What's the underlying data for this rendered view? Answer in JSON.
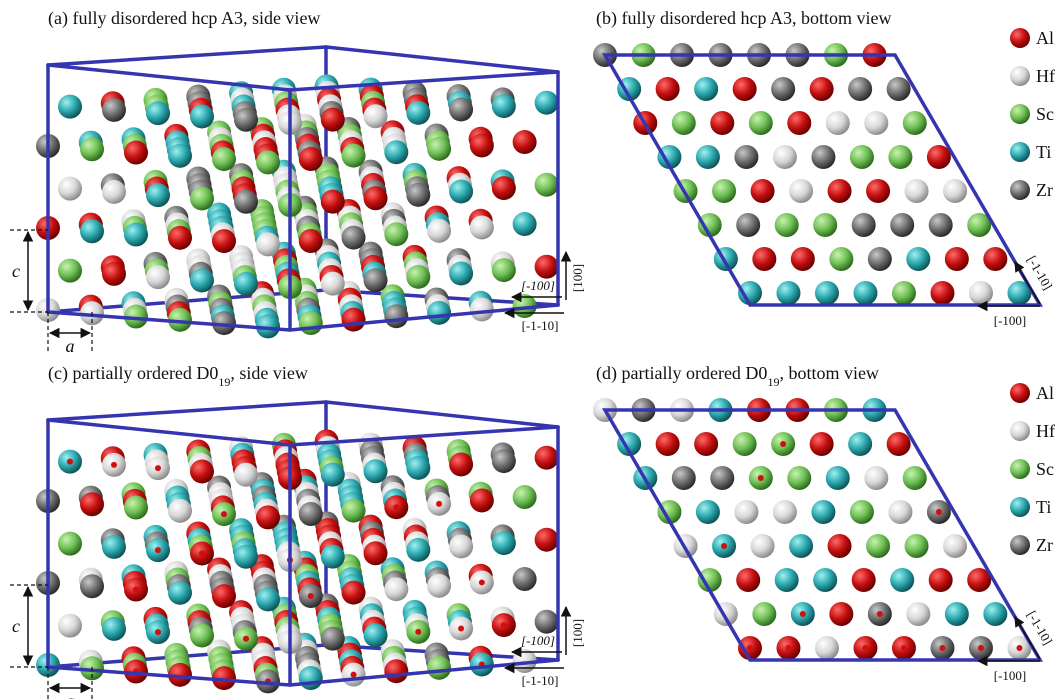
{
  "panels": [
    {
      "title": [
        "(a) fully disordered hcp A3, side view"
      ],
      "directions": [
        "[-100]",
        "[-1-10]",
        "[100]"
      ],
      "lattice": [
        "c",
        "a"
      ]
    },
    {
      "title": [
        "(b) fully disordered hcp A3, bottom view"
      ],
      "directions": [
        "[-1-10]",
        "[-100]"
      ],
      "legend": [
        "Al",
        "Hf",
        "Sc",
        "Ti",
        "Zr"
      ]
    },
    {
      "title": [
        "(c) partially ordered D0",
        "19",
        ", side view"
      ],
      "directions": [
        "[-100]",
        "[-1-10]",
        "[100]"
      ],
      "lattice": [
        "c",
        "a"
      ]
    },
    {
      "title": [
        "(d) partially ordered D0",
        "19",
        ", bottom view"
      ],
      "directions": [
        "[-1-10]",
        "[-100]"
      ],
      "legend": [
        "Al",
        "Hf",
        "Sc",
        "Ti",
        "Zr"
      ]
    }
  ]
}
